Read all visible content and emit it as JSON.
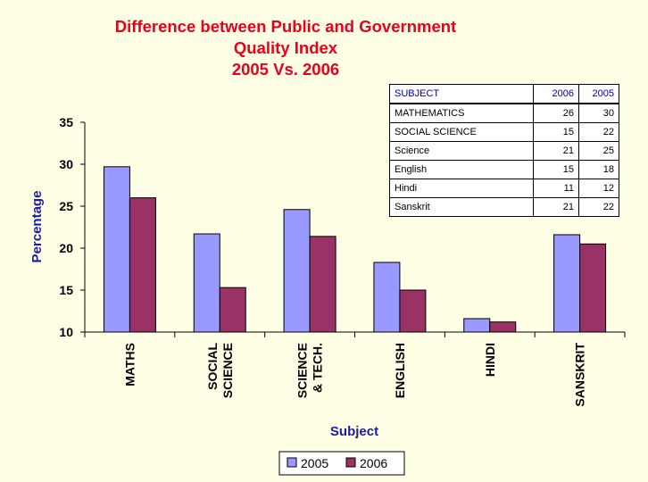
{
  "chart_data": {
    "type": "bar",
    "title_lines": [
      "Difference between Public and Government",
      "Quality Index",
      "2005 Vs. 2006"
    ],
    "xlabel": "Subject",
    "ylabel": "Percentage",
    "ylim": [
      10,
      35
    ],
    "yticks": [
      "10",
      "15",
      "20",
      "25",
      "30",
      "35"
    ],
    "categories": [
      [
        "MATHS"
      ],
      [
        "SOCIAL",
        "SCIENCE"
      ],
      [
        "SCIENCE",
        "& TECH."
      ],
      [
        "ENGLISH"
      ],
      [
        "HINDI"
      ],
      [
        "SANSKRIT"
      ]
    ],
    "series": [
      {
        "name": "2005",
        "color": "#9999ff",
        "values": [
          29.7,
          21.7,
          24.6,
          18.3,
          11.6,
          21.6
        ]
      },
      {
        "name": "2006",
        "color": "#993366",
        "values": [
          26.0,
          15.3,
          21.4,
          15.0,
          11.2,
          20.5
        ]
      }
    ],
    "grid": false,
    "legend": "bottom-center"
  },
  "table": {
    "header": {
      "subject": "SUBJECT",
      "y2006": "2006",
      "y2005": "2005"
    },
    "rows": [
      {
        "subject": "MATHEMATICS",
        "y2006": "26",
        "y2005": "30"
      },
      {
        "subject": "SOCIAL SCIENCE",
        "y2006": "15",
        "y2005": "22"
      },
      {
        "subject": "Science",
        "y2006": "21",
        "y2005": "25"
      },
      {
        "subject": "English",
        "y2006": "15",
        "y2005": "18"
      },
      {
        "subject": "Hindi",
        "y2006": "11",
        "y2005": "12"
      },
      {
        "subject": "Sanskrit",
        "y2006": "21",
        "y2005": "22"
      }
    ]
  },
  "colors": {
    "title": "#e8001c",
    "axis_label": "#1a1aa6",
    "background": "#ffffe6"
  }
}
